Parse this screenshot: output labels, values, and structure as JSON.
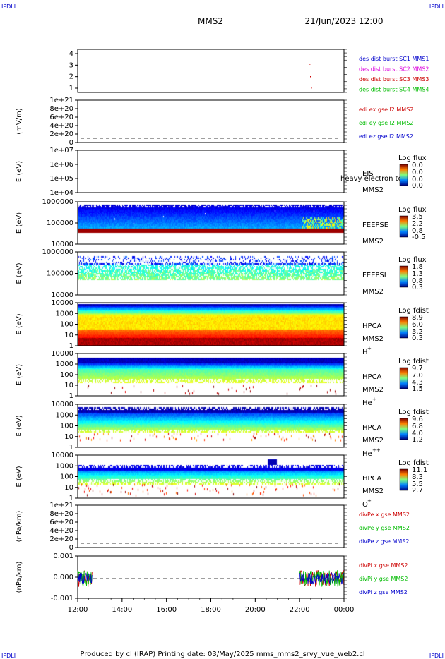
{
  "header": {
    "corner_tl": "IPDLI",
    "corner_tr": "IPDLI",
    "mission": "MMS2",
    "datetime": "21/Jun/2023 12:00",
    "corner_bl": "IPDLI",
    "corner_br": "IPDLI"
  },
  "footer": {
    "text": "Produced by cl (IRAP)   Printing date: 03/May/2025   mms_mms2_srvy_vue_web2.cl"
  },
  "colors": {
    "blue": "#0000cc",
    "magenta": "#dd00dd",
    "red": "#cc0000",
    "green": "#00bb00",
    "axis": "#000000"
  },
  "chart_data": {
    "type": "heatmap",
    "x_ticks": [
      "12:00",
      "14:00",
      "16:00",
      "18:00",
      "20:00",
      "22:00",
      "00:00"
    ],
    "x_range_hours": [
      12,
      24
    ],
    "panels": [
      {
        "id": "des-dist",
        "kind": "events",
        "ylabel": "",
        "yticks": [
          "4",
          "3",
          "2",
          "1"
        ],
        "legend": [
          {
            "text": "des dist burst SC1 MMS1",
            "color": "#0000cc"
          },
          {
            "text": "des dist burst SC2 MMS2",
            "color": "#dd00dd"
          },
          {
            "text": "des dist burst SC3 MMS3",
            "color": "#cc0000"
          },
          {
            "text": "des dist burst SC4 MMS4",
            "color": "#00bb00"
          }
        ]
      },
      {
        "id": "edi-e",
        "kind": "lines",
        "ylabel": "(mV/m)",
        "yticks": [
          "1e+21",
          "8e+20",
          "6e+20",
          "4e+20",
          "2e+20",
          "0"
        ],
        "legend": [
          {
            "text": "edi ex gse l2 MMS2",
            "color": "#cc0000"
          },
          {
            "text": "edi ey gse l2 MMS2",
            "color": "#00bb00"
          },
          {
            "text": "edi ez gse l2 MMS2",
            "color": "#0000cc"
          }
        ]
      },
      {
        "id": "eis",
        "kind": "spectrogram",
        "ylabel": "E (eV)",
        "yticks": [
          "1e+07",
          "1e+06",
          "1e+05",
          "1e+04"
        ],
        "name": [
          "EIS",
          "MMS2"
        ],
        "overlay_text": "heavy electron to",
        "cbar_title": "Log flux",
        "cbar_ticks": [
          "0.0",
          "0.0",
          "0.0",
          "0.0"
        ]
      },
      {
        "id": "feepse",
        "kind": "spectrogram",
        "ylabel": "E (eV)",
        "yticks": [
          "1000000",
          "100000",
          "10000"
        ],
        "name": [
          "FEEPSE",
          "MMS2"
        ],
        "cbar_title": "Log flux",
        "cbar_ticks": [
          "3.5",
          "2.2",
          "0.8",
          "-0.5"
        ]
      },
      {
        "id": "feepsi",
        "kind": "spectrogram",
        "ylabel": "E (eV)",
        "yticks": [
          "1000000",
          "100000",
          "10000"
        ],
        "name": [
          "FEEPSI",
          "MMS2"
        ],
        "cbar_title": "Log flux",
        "cbar_ticks": [
          "1.8",
          "1.3",
          "0.8",
          "0.3"
        ]
      },
      {
        "id": "hpca-h",
        "kind": "spectrogram",
        "ylabel": "E (eV)",
        "yticks": [
          "10000",
          "1000",
          "100",
          "10",
          "1"
        ],
        "name": [
          "HPCA",
          "MMS2",
          "H"
        ],
        "species_sup": "+",
        "cbar_title": "Log fdist",
        "cbar_ticks": [
          "8.9",
          "6.0",
          "3.2",
          "0.3"
        ]
      },
      {
        "id": "hpca-he1",
        "kind": "spectrogram",
        "ylabel": "E (eV)",
        "yticks": [
          "10000",
          "1000",
          "100",
          "10",
          "1"
        ],
        "name": [
          "HPCA",
          "MMS2",
          "He"
        ],
        "species_sup": "+",
        "cbar_title": "Log fdist",
        "cbar_ticks": [
          "9.7",
          "7.0",
          "4.3",
          "1.5"
        ]
      },
      {
        "id": "hpca-he2",
        "kind": "spectrogram",
        "ylabel": "E (eV)",
        "yticks": [
          "10000",
          "1000",
          "100",
          "10",
          "1"
        ],
        "name": [
          "HPCA",
          "MMS2",
          "He"
        ],
        "species_sup": "++",
        "cbar_title": "Log fdist",
        "cbar_ticks": [
          "9.6",
          "6.8",
          "4.0",
          "1.2"
        ]
      },
      {
        "id": "hpca-o",
        "kind": "spectrogram",
        "ylabel": "E (eV)",
        "yticks": [
          "10000",
          "1000",
          "100",
          "10",
          "1"
        ],
        "name": [
          "HPCA",
          "MMS2",
          "O"
        ],
        "species_sup": "+",
        "cbar_title": "Log fdist",
        "cbar_ticks": [
          "11.1",
          "8.3",
          "5.5",
          "2.7"
        ]
      },
      {
        "id": "divpe",
        "kind": "lines",
        "ylabel": "(nPa/km)",
        "yticks": [
          "1e+21",
          "8e+20",
          "6e+20",
          "4e+20",
          "2e+20",
          "0"
        ],
        "legend": [
          {
            "text": "divPe x gse MMS2",
            "color": "#cc0000"
          },
          {
            "text": "divPe y gse MMS2",
            "color": "#00bb00"
          },
          {
            "text": "divPe z gse MMS2",
            "color": "#0000cc"
          }
        ]
      },
      {
        "id": "divpi",
        "kind": "lines",
        "ylabel": "(nPa/km)",
        "yticks": [
          "0.001",
          "0.000",
          "-0.001"
        ],
        "data_intervals_hours": [
          [
            12.0,
            12.65
          ],
          [
            22.0,
            24.0
          ]
        ],
        "legend": [
          {
            "text": "divPi x gse MMS2",
            "color": "#cc0000"
          },
          {
            "text": "divPi y gse MMS2",
            "color": "#00bb00"
          },
          {
            "text": "divPi z gse MMS2",
            "color": "#0000cc"
          }
        ]
      }
    ]
  }
}
